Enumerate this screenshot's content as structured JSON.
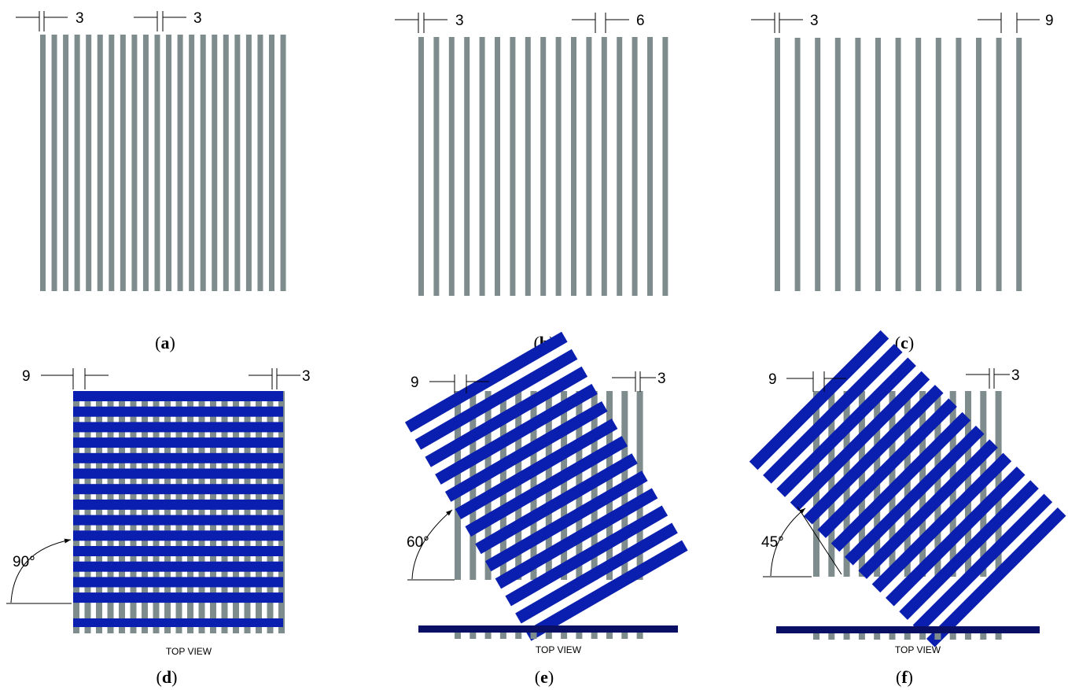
{
  "colors": {
    "gray_strip": "#7f8c8d",
    "blue_strip": "#0a1fb0",
    "navy_bar": "#0a0f66"
  },
  "panel_a": {
    "dim_left": "3",
    "dim_right": "3",
    "caption": "a"
  },
  "panel_b": {
    "dim_left": "3",
    "dim_right": "6",
    "caption": "b"
  },
  "panel_c": {
    "dim_left": "3",
    "dim_right": "9",
    "caption": "c"
  },
  "panel_d": {
    "dim_left": "9",
    "dim_right": "3",
    "angle": "90°",
    "view_label": "TOP VIEW",
    "caption": "d"
  },
  "panel_e": {
    "dim_left": "9",
    "dim_right": "3",
    "angle": "60°",
    "view_label": "TOP VIEW",
    "caption": "e"
  },
  "panel_f": {
    "dim_left": "9",
    "dim_right": "3",
    "angle": "45°",
    "view_label": "TOP VIEW",
    "caption": "f"
  }
}
